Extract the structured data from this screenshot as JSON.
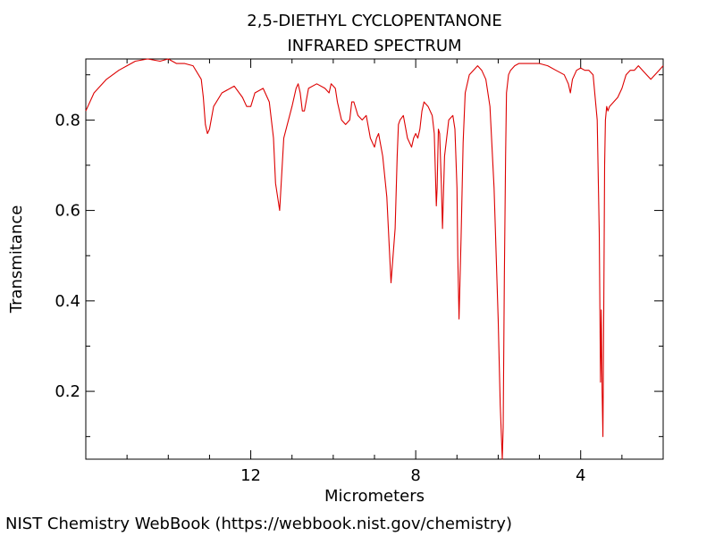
{
  "chart_data": {
    "type": "line",
    "title": "2,5-DIETHYL CYCLOPENTANONE",
    "subtitle": "INFRARED SPECTRUM",
    "xlabel": "Micrometers",
    "ylabel": "Transmitance",
    "x_reversed": true,
    "xlim": [
      16.0,
      2.0
    ],
    "ylim": [
      0.05,
      0.935
    ],
    "x_ticks": [
      12,
      8,
      4
    ],
    "x_minor_ticks": [
      15,
      14,
      13,
      11,
      10,
      9,
      7,
      6,
      5,
      3
    ],
    "y_ticks": [
      0.2,
      0.4,
      0.6,
      0.8
    ],
    "y_minor_ticks": [
      0.1,
      0.3,
      0.5,
      0.7,
      0.9
    ],
    "grid": false,
    "line_color": "#dd0000",
    "series": [
      {
        "x": [
          16.0,
          15.8,
          15.5,
          15.2,
          15.0,
          14.8,
          14.5,
          14.2,
          14.0,
          13.8,
          13.6,
          13.4,
          13.2,
          13.15,
          13.1,
          13.05,
          13.0,
          12.9,
          12.7,
          12.4,
          12.2,
          12.1,
          12.0,
          11.9,
          11.7,
          11.55,
          11.45,
          11.4,
          11.3,
          11.2,
          11.0,
          10.9,
          10.85,
          10.8,
          10.75,
          10.7,
          10.6,
          10.4,
          10.2,
          10.1,
          10.05,
          9.95,
          9.9,
          9.8,
          9.7,
          9.6,
          9.55,
          9.5,
          9.4,
          9.3,
          9.2,
          9.1,
          9.0,
          8.95,
          8.9,
          8.8,
          8.7,
          8.6,
          8.5,
          8.45,
          8.42,
          8.38,
          8.3,
          8.2,
          8.1,
          8.05,
          8.0,
          7.95,
          7.9,
          7.85,
          7.8,
          7.7,
          7.6,
          7.55,
          7.5,
          7.48,
          7.45,
          7.42,
          7.38,
          7.35,
          7.3,
          7.2,
          7.1,
          7.05,
          7.0,
          6.98,
          6.95,
          6.9,
          6.85,
          6.8,
          6.7,
          6.6,
          6.5,
          6.4,
          6.3,
          6.2,
          6.1,
          6.0,
          5.95,
          5.9,
          5.88,
          5.85,
          5.82,
          5.8,
          5.75,
          5.7,
          5.6,
          5.5,
          5.3,
          5.0,
          4.8,
          4.6,
          4.4,
          4.3,
          4.25,
          4.2,
          4.1,
          4.0,
          3.9,
          3.8,
          3.7,
          3.6,
          3.55,
          3.52,
          3.5,
          3.48,
          3.46,
          3.44,
          3.42,
          3.4,
          3.37,
          3.34,
          3.3,
          3.2,
          3.1,
          3.0,
          2.9,
          2.8,
          2.7,
          2.6,
          2.5,
          2.4,
          2.3,
          2.2,
          2.1,
          2.0
        ],
        "y": [
          0.82,
          0.86,
          0.89,
          0.91,
          0.92,
          0.93,
          0.935,
          0.93,
          0.935,
          0.925,
          0.925,
          0.92,
          0.89,
          0.85,
          0.79,
          0.77,
          0.78,
          0.83,
          0.86,
          0.875,
          0.85,
          0.83,
          0.83,
          0.86,
          0.87,
          0.84,
          0.76,
          0.66,
          0.6,
          0.76,
          0.83,
          0.87,
          0.88,
          0.86,
          0.82,
          0.82,
          0.87,
          0.88,
          0.87,
          0.86,
          0.88,
          0.87,
          0.84,
          0.8,
          0.79,
          0.8,
          0.84,
          0.84,
          0.81,
          0.8,
          0.81,
          0.76,
          0.74,
          0.76,
          0.77,
          0.72,
          0.63,
          0.44,
          0.56,
          0.72,
          0.79,
          0.8,
          0.81,
          0.76,
          0.74,
          0.76,
          0.77,
          0.76,
          0.78,
          0.82,
          0.84,
          0.83,
          0.81,
          0.77,
          0.61,
          0.65,
          0.78,
          0.77,
          0.66,
          0.56,
          0.72,
          0.8,
          0.81,
          0.78,
          0.65,
          0.5,
          0.36,
          0.54,
          0.75,
          0.86,
          0.9,
          0.91,
          0.92,
          0.91,
          0.89,
          0.83,
          0.65,
          0.36,
          0.17,
          0.05,
          0.12,
          0.45,
          0.72,
          0.86,
          0.9,
          0.91,
          0.92,
          0.925,
          0.925,
          0.925,
          0.92,
          0.91,
          0.9,
          0.88,
          0.86,
          0.89,
          0.91,
          0.915,
          0.91,
          0.91,
          0.9,
          0.8,
          0.55,
          0.22,
          0.38,
          0.2,
          0.1,
          0.4,
          0.7,
          0.8,
          0.83,
          0.82,
          0.83,
          0.84,
          0.85,
          0.87,
          0.9,
          0.91,
          0.91,
          0.92,
          0.91,
          0.9,
          0.89,
          0.9,
          0.91,
          0.92
        ]
      }
    ]
  },
  "footer": {
    "credit": "NIST Chemistry WebBook (https://webbook.nist.gov/chemistry)"
  }
}
